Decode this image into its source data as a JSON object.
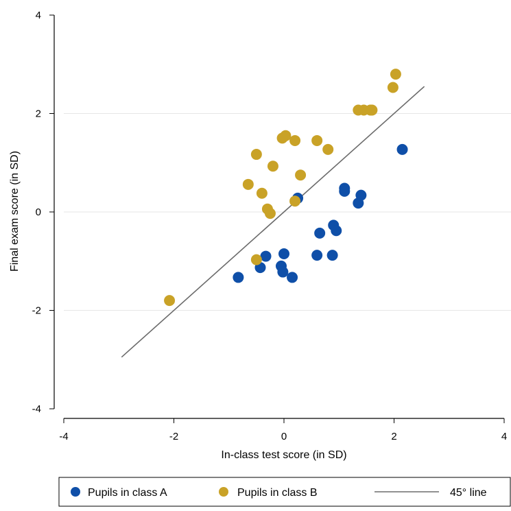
{
  "chart_data": {
    "type": "scatter",
    "xlabel": "In-class test score (in SD)",
    "ylabel": "Final exam score (in SD)",
    "xlim": [
      -4,
      4
    ],
    "ylim": [
      -4,
      4
    ],
    "xticks": [
      "-4",
      "-2",
      "0",
      "2",
      "4"
    ],
    "yticks": [
      "4",
      "2",
      "0",
      "-2",
      "-4"
    ],
    "grid": "horizontal",
    "legend_position": "bottom",
    "colors": {
      "class_a": "#0f4fa8",
      "class_b": "#c9a227",
      "line": "#6b6b6b",
      "grid": "#e6e6e6"
    },
    "series": [
      {
        "name": "Pupils in class A",
        "points": [
          [
            -0.83,
            -1.33
          ],
          [
            -0.43,
            -1.13
          ],
          [
            -0.33,
            -0.9
          ],
          [
            -0.05,
            -1.1
          ],
          [
            -0.02,
            -1.22
          ],
          [
            0.0,
            -0.85
          ],
          [
            0.15,
            -1.33
          ],
          [
            0.25,
            0.28
          ],
          [
            0.6,
            -0.88
          ],
          [
            0.65,
            -0.43
          ],
          [
            0.88,
            -0.88
          ],
          [
            0.9,
            -0.27
          ],
          [
            0.95,
            -0.38
          ],
          [
            1.1,
            0.48
          ],
          [
            1.1,
            0.42
          ],
          [
            1.35,
            0.18
          ],
          [
            1.4,
            0.34
          ],
          [
            2.15,
            1.27
          ]
        ]
      },
      {
        "name": "Pupils in class B",
        "points": [
          [
            -2.08,
            -1.8
          ],
          [
            -0.65,
            0.56
          ],
          [
            -0.5,
            1.17
          ],
          [
            -0.5,
            -0.97
          ],
          [
            -0.4,
            0.38
          ],
          [
            -0.3,
            0.06
          ],
          [
            -0.25,
            -0.03
          ],
          [
            -0.2,
            0.93
          ],
          [
            -0.03,
            1.5
          ],
          [
            0.03,
            1.55
          ],
          [
            0.2,
            1.45
          ],
          [
            0.2,
            0.22
          ],
          [
            0.3,
            0.75
          ],
          [
            0.6,
            1.45
          ],
          [
            0.8,
            1.27
          ],
          [
            1.35,
            2.07
          ],
          [
            1.45,
            2.07
          ],
          [
            1.57,
            2.07
          ],
          [
            1.6,
            2.07
          ],
          [
            1.98,
            2.53
          ],
          [
            2.03,
            2.8
          ]
        ]
      }
    ],
    "reference_line": {
      "name": "45° line",
      "from": [
        -2.95,
        -2.95
      ],
      "to": [
        2.55,
        2.55
      ]
    }
  }
}
